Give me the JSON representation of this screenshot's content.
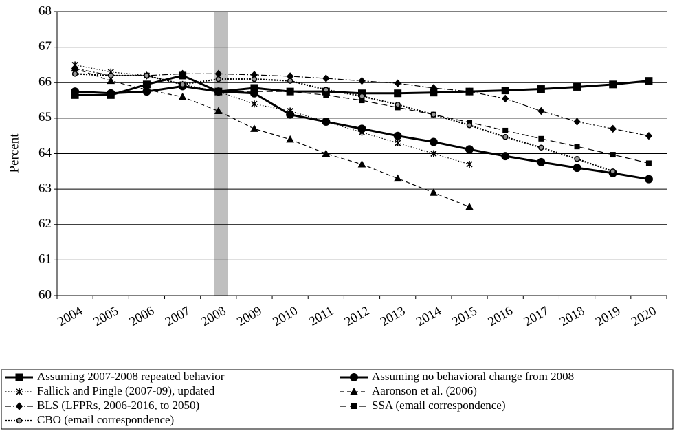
{
  "chart_data": {
    "type": "line",
    "y_label": "Percent",
    "categories": [
      "2004",
      "2005",
      "2006",
      "2007",
      "2008",
      "2009",
      "2010",
      "2011",
      "2012",
      "2013",
      "2014",
      "2015",
      "2016",
      "2017",
      "2018",
      "2019",
      "2020"
    ],
    "ylim": [
      60,
      68
    ],
    "yticks": [
      60,
      61,
      62,
      63,
      64,
      65,
      66,
      67,
      68
    ],
    "series": [
      {
        "name": "Assuming 2007-2008 repeated behavior",
        "color": "#000000",
        "style": "thick",
        "marker": "square",
        "values": [
          65.65,
          65.65,
          65.95,
          66.2,
          65.75,
          65.85,
          65.75,
          65.75,
          65.7,
          65.7,
          65.72,
          65.75,
          65.78,
          65.82,
          65.88,
          65.95,
          66.05
        ]
      },
      {
        "name": "Assuming no behavioral change from 2008",
        "color": "#000000",
        "style": "thick",
        "marker": "circle",
        "values": [
          65.75,
          65.7,
          65.75,
          65.9,
          65.75,
          65.7,
          65.1,
          64.9,
          64.7,
          64.5,
          64.33,
          64.12,
          63.93,
          63.76,
          63.6,
          63.45,
          63.28
        ]
      },
      {
        "name": "Fallick and Pingle (2007-09), updated",
        "color": "#000000",
        "style": "dotted",
        "marker": "cross",
        "values": [
          66.5,
          66.3,
          66.2,
          65.95,
          65.75,
          65.4,
          65.2,
          64.9,
          64.6,
          64.3,
          64.0,
          63.7,
          null,
          null,
          null,
          null,
          null
        ]
      },
      {
        "name": "Aaronson et al. (2006)",
        "color": "#000000",
        "style": "dashed",
        "marker": "triangle",
        "values": [
          66.4,
          66.05,
          65.8,
          65.6,
          65.2,
          64.7,
          64.4,
          64.0,
          63.7,
          63.3,
          62.9,
          62.5,
          null,
          null,
          null,
          null,
          null
        ]
      },
      {
        "name": "BLS (LFPRs, 2006-2016, to 2050)",
        "color": "#000000",
        "style": "dash-dot",
        "marker": "diamond",
        "values": [
          66.4,
          66.2,
          66.2,
          66.25,
          66.25,
          66.22,
          66.18,
          66.12,
          66.05,
          65.98,
          65.85,
          65.75,
          65.55,
          65.2,
          64.9,
          64.7,
          64.5
        ]
      },
      {
        "name": "SSA (email correspondence)",
        "color": "#000000",
        "style": "long-dash",
        "marker": "small-square",
        "values": [
          null,
          null,
          null,
          null,
          65.75,
          65.75,
          65.75,
          65.65,
          65.5,
          65.3,
          65.1,
          64.88,
          64.65,
          64.42,
          64.2,
          63.97,
          63.73
        ]
      },
      {
        "name": "CBO (email correspondence)",
        "color": "#000000",
        "style": "dotted-heavy",
        "marker": "dot",
        "values": [
          66.25,
          66.2,
          66.2,
          65.95,
          66.1,
          66.1,
          66.05,
          65.8,
          65.62,
          65.38,
          65.1,
          64.8,
          64.47,
          64.17,
          63.85,
          63.5,
          null
        ]
      }
    ]
  }
}
